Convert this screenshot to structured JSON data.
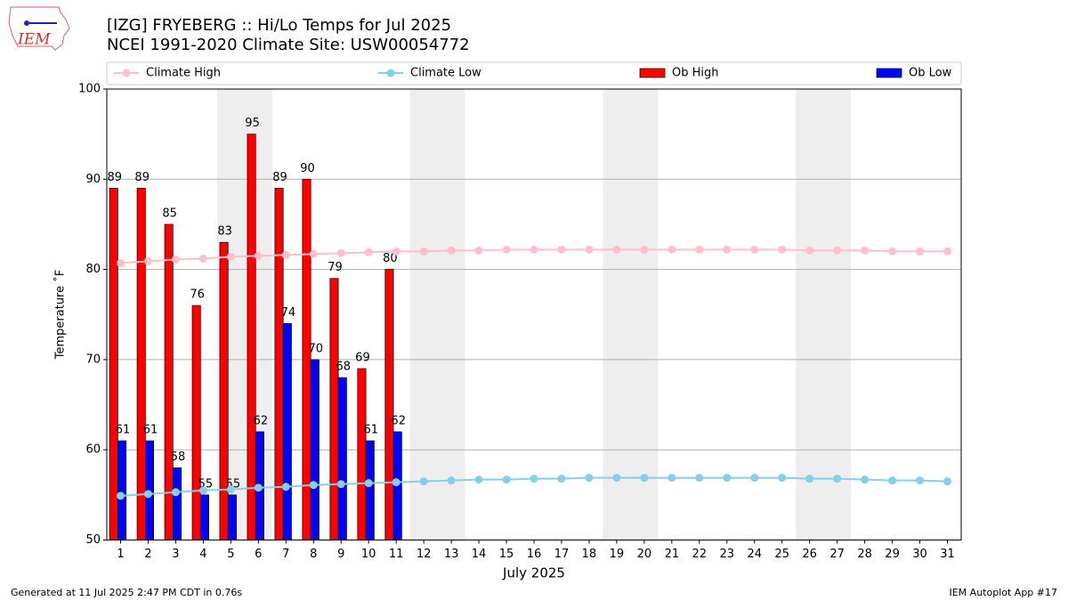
{
  "logo_text": "IEM",
  "footer_left": "Generated at 11 Jul 2025 2:47 PM CDT in 0.76s",
  "footer_right": "IEM Autoplot App #17",
  "chart_data": {
    "type": "bar",
    "title": "[IZG] FRYEBERG :: Hi/Lo Temps for Jul 2025",
    "subtitle": "NCEI 1991-2020 Climate Site: USW00054772",
    "xlabel": "July 2025",
    "ylabel": "Temperature ˚F",
    "x": [
      1,
      2,
      3,
      4,
      5,
      6,
      7,
      8,
      9,
      10,
      11,
      12,
      13,
      14,
      15,
      16,
      17,
      18,
      19,
      20,
      21,
      22,
      23,
      24,
      25,
      26,
      27,
      28,
      29,
      30,
      31
    ],
    "xlim": [
      0.5,
      31.5
    ],
    "xticks": [
      1,
      2,
      3,
      4,
      5,
      6,
      7,
      8,
      9,
      10,
      11,
      12,
      13,
      14,
      15,
      16,
      17,
      18,
      19,
      20,
      21,
      22,
      23,
      24,
      25,
      26,
      27,
      28,
      29,
      30,
      31
    ],
    "ylim": [
      50,
      100
    ],
    "yticks": [
      50,
      60,
      70,
      80,
      90,
      100
    ],
    "grid": true,
    "shaded_spans": [
      [
        4.5,
        6.5
      ],
      [
        11.5,
        13.5
      ],
      [
        18.5,
        20.5
      ],
      [
        25.5,
        27.5
      ]
    ],
    "shade_color": "#eeeeee",
    "series": [
      {
        "name": "Climate High",
        "type": "line",
        "color": "pink",
        "values": [
          80.7,
          80.9,
          81.1,
          81.2,
          81.4,
          81.5,
          81.6,
          81.7,
          81.8,
          81.9,
          82.0,
          82.0,
          82.1,
          82.1,
          82.2,
          82.2,
          82.2,
          82.2,
          82.2,
          82.2,
          82.2,
          82.2,
          82.2,
          82.2,
          82.2,
          82.1,
          82.1,
          82.1,
          82.0,
          82.0,
          82.0
        ]
      },
      {
        "name": "Climate Low",
        "type": "line",
        "color": "skyblue",
        "values": [
          54.9,
          55.1,
          55.3,
          55.5,
          55.6,
          55.8,
          55.9,
          56.1,
          56.2,
          56.3,
          56.4,
          56.5,
          56.6,
          56.7,
          56.7,
          56.8,
          56.8,
          56.9,
          56.9,
          56.9,
          56.9,
          56.9,
          56.9,
          56.9,
          56.9,
          56.8,
          56.8,
          56.7,
          56.6,
          56.6,
          56.5
        ]
      },
      {
        "name": "Ob High",
        "type": "bar",
        "color": "red",
        "values": [
          89,
          89,
          85,
          76,
          83,
          95,
          89,
          90,
          79,
          69,
          80,
          null,
          null,
          null,
          null,
          null,
          null,
          null,
          null,
          null,
          null,
          null,
          null,
          null,
          null,
          null,
          null,
          null,
          null,
          null,
          null
        ]
      },
      {
        "name": "Ob Low",
        "type": "bar",
        "color": "blue",
        "values": [
          61,
          61,
          58,
          55,
          55,
          62,
          74,
          70,
          68,
          61,
          62,
          null,
          null,
          null,
          null,
          null,
          null,
          null,
          null,
          null,
          null,
          null,
          null,
          null,
          null,
          null,
          null,
          null,
          null,
          null,
          null
        ]
      }
    ]
  }
}
